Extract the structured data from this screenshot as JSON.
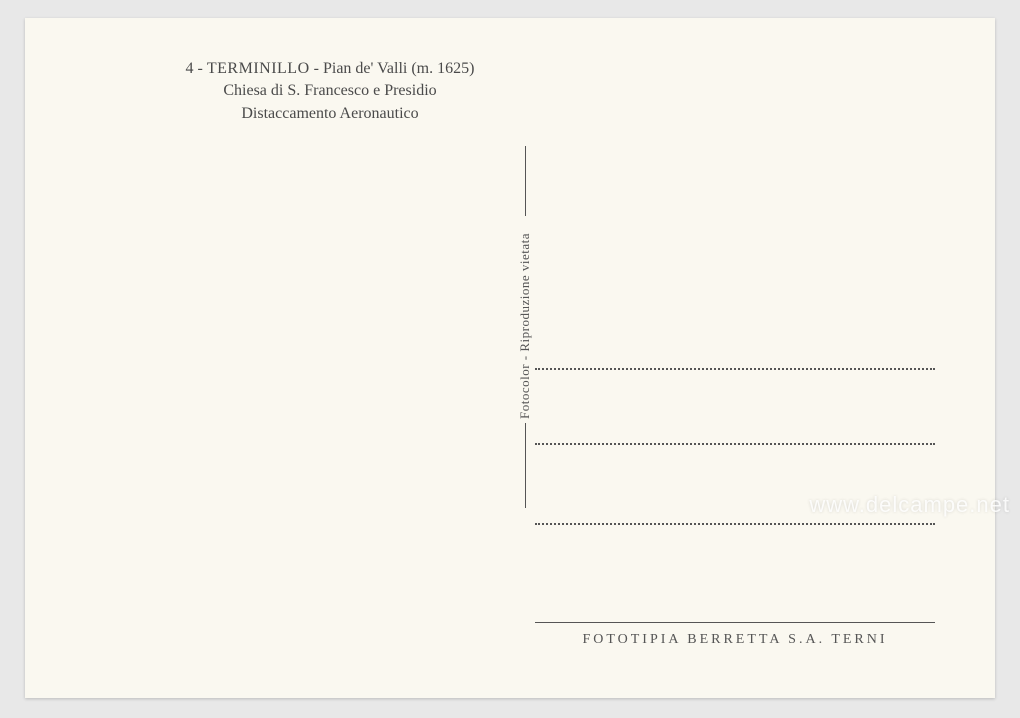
{
  "header": {
    "number": "4",
    "title": "TERMINILLO",
    "subtitle1": "Pian de' Valli (m. 1625)",
    "line2": "Chiesa di S. Francesco e Presidio",
    "line3": "Distaccamento Aeronautico"
  },
  "vertical": {
    "text": "Fotocolor - Riproduzione vietata"
  },
  "footer": {
    "text": "FOTOTIPIA BERRETTA S.A. TERNI"
  },
  "watermark": {
    "text": "www.delcampe.net"
  },
  "colors": {
    "background": "#e8e8e8",
    "card": "#faf8f0",
    "text": "#4a4a4a",
    "line": "#555555"
  }
}
